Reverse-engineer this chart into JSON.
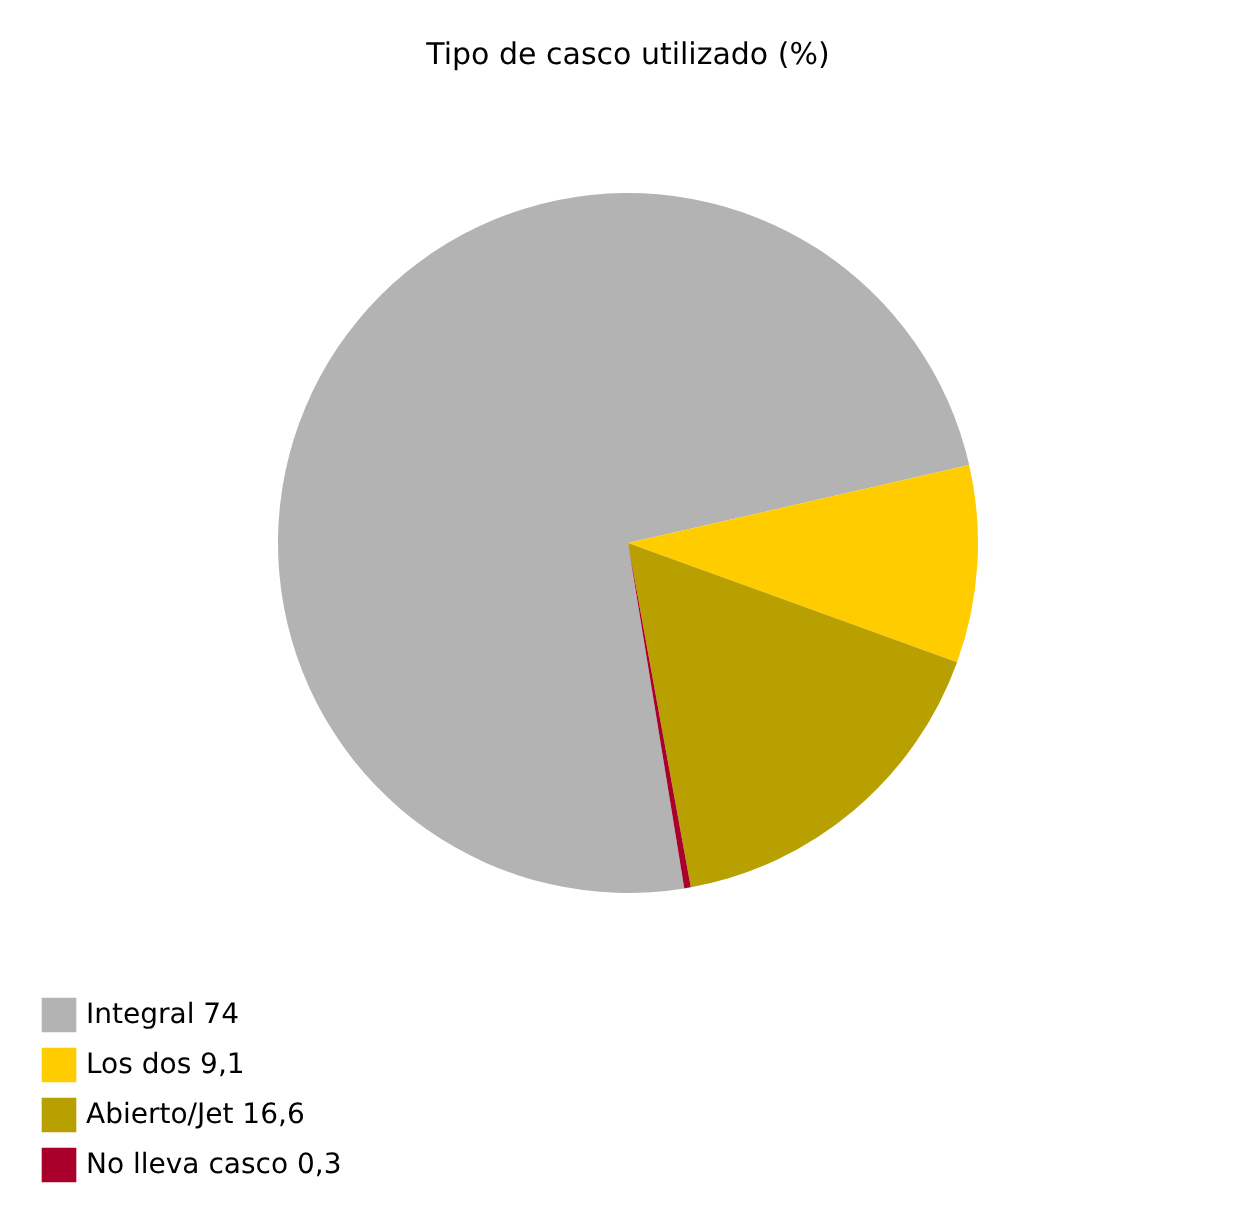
{
  "chart_data": {
    "type": "pie",
    "title": "Tipo de casco utilizado (%)",
    "categories": [
      "Integral",
      "Los dos",
      "Abierto/Jet",
      "No lleva casco"
    ],
    "values": [
      74,
      9.1,
      16.6,
      0.3
    ],
    "value_labels": [
      "74",
      "9,1",
      "16,6",
      "0,3"
    ],
    "colors": [
      "#b3b3b3",
      "#ffcc00",
      "#b8a000",
      "#a8002a"
    ],
    "legend": "bottom"
  }
}
